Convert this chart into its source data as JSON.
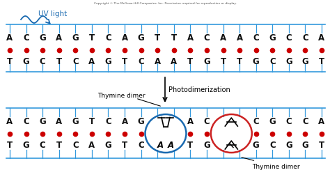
{
  "copyright": "Copyright © The McGraw-Hill Companies, Inc. Permission required for reproduction or display.",
  "uv_label": "UV light",
  "photodimerization_label": "Photodimerization",
  "thymine_dimer_label": "Thymine dimer",
  "top_strand1": [
    "A",
    "C",
    "G",
    "A",
    "G",
    "T",
    "C",
    "A",
    "G",
    "T",
    "T",
    "A",
    "C",
    "A",
    "A",
    "C",
    "G",
    "C",
    "C",
    "A"
  ],
  "top_strand2": [
    "T",
    "G",
    "C",
    "T",
    "C",
    "A",
    "G",
    "T",
    "C",
    "A",
    "A",
    "T",
    "G",
    "T",
    "T",
    "G",
    "C",
    "G",
    "G",
    "T"
  ],
  "bot_strand1": [
    "A",
    "C",
    "G",
    "A",
    "G",
    "T",
    "C",
    "A",
    "G",
    "",
    "",
    "A",
    "C",
    "",
    "",
    "C",
    "G",
    "C",
    "C",
    "A"
  ],
  "bot_strand2": [
    "T",
    "G",
    "C",
    "T",
    "C",
    "A",
    "G",
    "T",
    "C",
    "",
    "",
    "T",
    "G",
    "",
    "",
    "G",
    "C",
    "G",
    "G",
    "T"
  ],
  "dimer1_idx": [
    9,
    10
  ],
  "dimer2_idx": [
    13,
    14
  ],
  "blue_color": "#1a6ab0",
  "red_color": "#cc2222",
  "black_color": "#111111",
  "bg_color": "#FFFFFF",
  "strand_color": "#3399dd",
  "dot_color": "#cc0000",
  "n_bases": 20,
  "figsize": [
    4.74,
    2.64
  ],
  "dpi": 100
}
